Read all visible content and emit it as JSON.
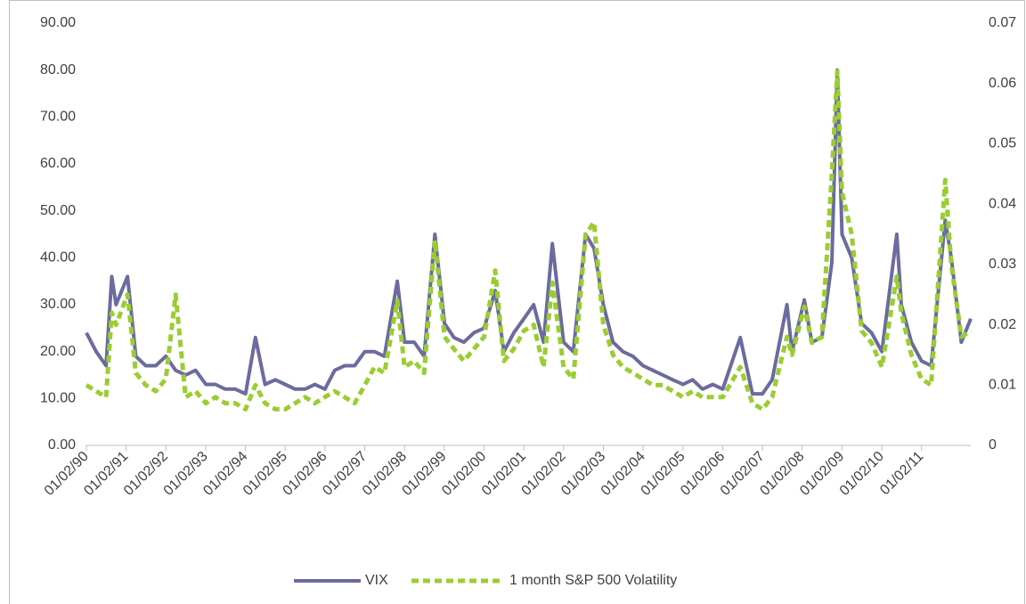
{
  "chart_data": {
    "type": "line",
    "x": [
      "01/02/90",
      "04/02/90",
      "07/02/90",
      "08/23/90",
      "10/01/90",
      "01/15/91",
      "04/01/91",
      "07/01/91",
      "10/01/91",
      "01/02/92",
      "04/01/92",
      "07/01/92",
      "10/01/92",
      "01/04/93",
      "04/01/93",
      "07/01/93",
      "10/01/93",
      "01/03/94",
      "04/04/94",
      "07/01/94",
      "10/03/94",
      "01/03/95",
      "04/03/95",
      "07/03/95",
      "10/02/95",
      "01/02/96",
      "04/01/96",
      "07/01/96",
      "10/01/96",
      "01/02/97",
      "04/01/97",
      "07/01/97",
      "10/28/97",
      "01/02/98",
      "04/01/98",
      "07/01/98",
      "10/08/98",
      "01/04/99",
      "04/01/99",
      "07/01/99",
      "10/01/99",
      "01/03/00",
      "04/14/00",
      "07/03/00",
      "10/02/00",
      "01/02/01",
      "04/02/01",
      "07/02/01",
      "09/21/01",
      "01/02/02",
      "04/01/02",
      "07/23/02",
      "10/09/02",
      "01/02/03",
      "04/01/03",
      "07/01/03",
      "10/01/03",
      "01/02/04",
      "04/01/04",
      "07/01/04",
      "10/01/04",
      "01/03/05",
      "04/01/05",
      "07/01/05",
      "10/03/05",
      "01/03/06",
      "06/13/06",
      "10/02/06",
      "01/03/07",
      "04/02/07",
      "08/16/07",
      "10/01/07",
      "01/22/08",
      "04/01/08",
      "07/01/08",
      "10/01/08",
      "11/20/08",
      "01/02/09",
      "04/01/09",
      "07/01/09",
      "10/01/09",
      "01/04/10",
      "05/20/10",
      "07/01/10",
      "10/01/10",
      "01/03/11",
      "04/01/11",
      "08/08/11",
      "10/03/11",
      "01/03/12",
      "03/30/12"
    ],
    "series": [
      {
        "name": "VIX",
        "color": "#6b6b9e",
        "axis": "y",
        "values": [
          24,
          20,
          17,
          36,
          30,
          36,
          19,
          17,
          17,
          19,
          16,
          15,
          16,
          13,
          13,
          12,
          12,
          11,
          23,
          13,
          14,
          13,
          12,
          12,
          13,
          12,
          16,
          17,
          17,
          20,
          20,
          19,
          35,
          22,
          22,
          19,
          45,
          26,
          23,
          22,
          24,
          25,
          33,
          20,
          24,
          27,
          30,
          22,
          43,
          22,
          20,
          45,
          42,
          30,
          22,
          20,
          19,
          17,
          16,
          15,
          14,
          13,
          14,
          12,
          13,
          12,
          23,
          11,
          11,
          14,
          30,
          20,
          31,
          22,
          23,
          39,
          80,
          45,
          40,
          26,
          24,
          20,
          45,
          30,
          22,
          18,
          17,
          48,
          40,
          22,
          27
        ]
      },
      {
        "name": "1 month S&P 500 Volatility",
        "color": "#9acd32",
        "axis": "y2",
        "values": [
          0.01,
          0.009,
          0.008,
          0.022,
          0.02,
          0.025,
          0.012,
          0.01,
          0.009,
          0.011,
          0.025,
          0.008,
          0.009,
          0.007,
          0.008,
          0.007,
          0.007,
          0.006,
          0.01,
          0.007,
          0.006,
          0.006,
          0.007,
          0.008,
          0.007,
          0.008,
          0.009,
          0.008,
          0.007,
          0.01,
          0.013,
          0.012,
          0.024,
          0.013,
          0.014,
          0.012,
          0.034,
          0.018,
          0.016,
          0.014,
          0.016,
          0.018,
          0.029,
          0.014,
          0.016,
          0.019,
          0.02,
          0.013,
          0.027,
          0.013,
          0.011,
          0.035,
          0.037,
          0.02,
          0.015,
          0.013,
          0.012,
          0.011,
          0.01,
          0.01,
          0.009,
          0.008,
          0.009,
          0.008,
          0.008,
          0.008,
          0.013,
          0.007,
          0.006,
          0.008,
          0.018,
          0.015,
          0.023,
          0.017,
          0.018,
          0.045,
          0.062,
          0.042,
          0.035,
          0.019,
          0.017,
          0.013,
          0.028,
          0.022,
          0.015,
          0.011,
          0.01,
          0.044,
          0.03,
          0.018,
          0.019
        ]
      }
    ],
    "xlim": [
      "01/02/90",
      "03/30/12"
    ],
    "xticks": [
      "01/02/90",
      "01/02/91",
      "01/02/92",
      "01/02/93",
      "01/02/94",
      "01/02/95",
      "01/02/96",
      "01/02/97",
      "01/02/98",
      "01/02/99",
      "01/02/00",
      "01/02/01",
      "01/02/02",
      "01/02/03",
      "01/02/04",
      "01/02/05",
      "01/02/06",
      "01/02/07",
      "01/02/08",
      "01/02/09",
      "01/02/10",
      "01/02/11"
    ],
    "ylim": [
      0,
      90
    ],
    "yticks": [
      {
        "value": 0,
        "label": "0.00"
      },
      {
        "value": 10,
        "label": "10.00"
      },
      {
        "value": 20,
        "label": "20.00"
      },
      {
        "value": 30,
        "label": "30.00"
      },
      {
        "value": 40,
        "label": "40.00"
      },
      {
        "value": 50,
        "label": "50.00"
      },
      {
        "value": 60,
        "label": "60.00"
      },
      {
        "value": 70,
        "label": "70.00"
      },
      {
        "value": 80,
        "label": "80.00"
      },
      {
        "value": 90,
        "label": "90.00"
      }
    ],
    "y2lim": [
      0,
      0.07
    ],
    "y2ticks": [
      0,
      0.01,
      0.02,
      0.03,
      0.04,
      0.05,
      0.06,
      0.07
    ],
    "legend": "bottom"
  }
}
